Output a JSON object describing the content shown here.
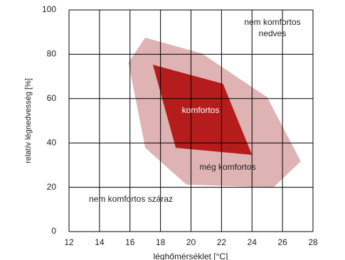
{
  "chart_data": {
    "type": "polygon",
    "xlabel": "léghőmérséklet [°C]",
    "ylabel": "relatív légnedvesség  [%]",
    "xlim": [
      12,
      28
    ],
    "xticks": [
      12,
      14,
      16,
      18,
      20,
      22,
      24,
      26,
      28
    ],
    "ylim": [
      0,
      100
    ],
    "yticks": [
      0,
      20,
      40,
      60,
      80,
      100
    ],
    "grid": true,
    "series": [
      {
        "name": "még komfortos",
        "color": "#dfb3b3",
        "x": [
          17.0,
          20.7,
          25.0,
          27.2,
          25.4,
          19.7,
          17.0,
          15.9
        ],
        "values": [
          87.5,
          80.4,
          60.6,
          31.7,
          19.9,
          21.2,
          37.8,
          76.3
        ]
      },
      {
        "name": "komfortos",
        "color": "#b51d1d",
        "x": [
          17.5,
          22.1,
          24.0,
          19.0
        ],
        "values": [
          75.3,
          66.7,
          34.6,
          37.8
        ]
      }
    ],
    "annotations": [
      "nem komfortos",
      "nedves",
      "nem komfortos száraz"
    ]
  }
}
